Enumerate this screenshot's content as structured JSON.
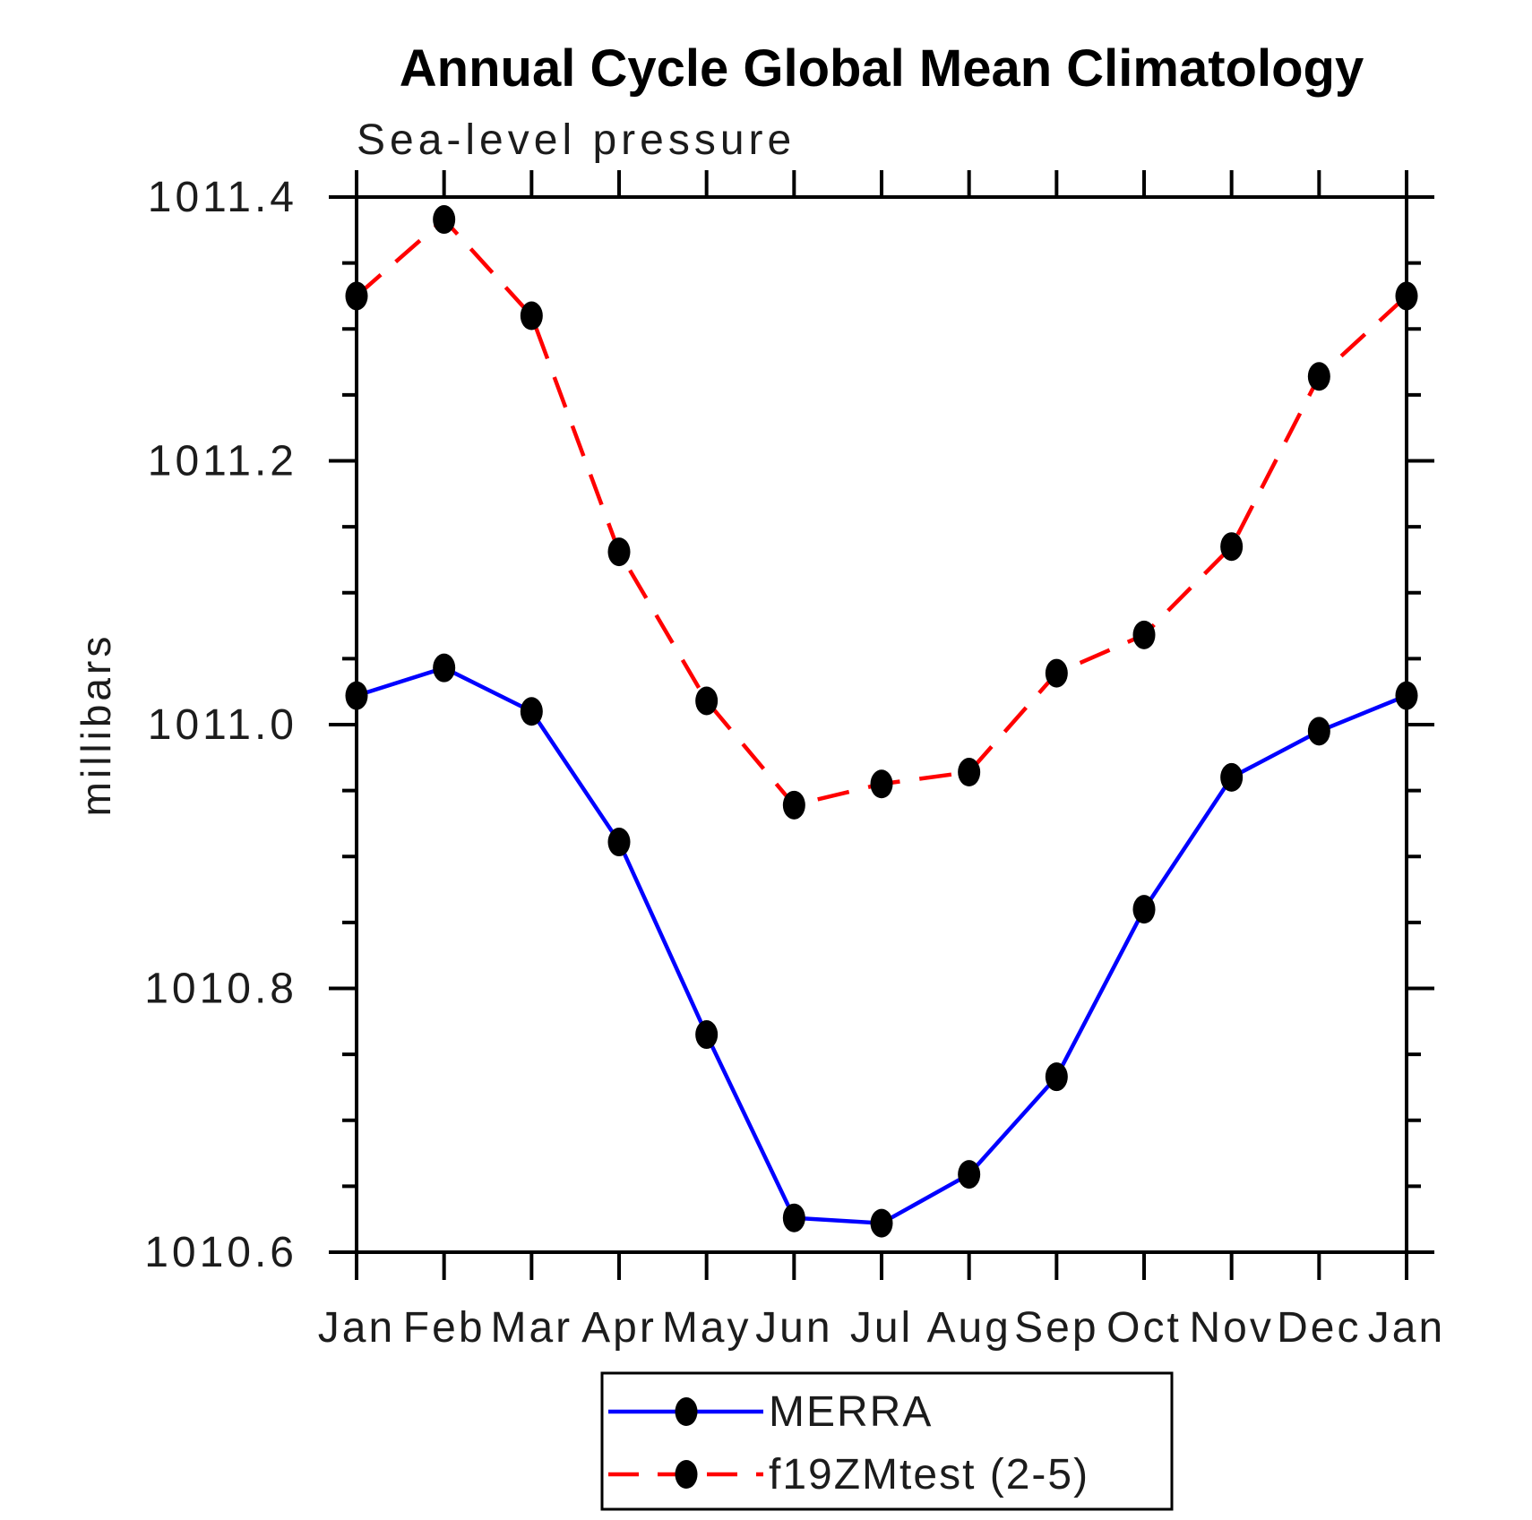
{
  "chart_data": {
    "type": "line",
    "title": "Annual Cycle Global Mean Climatology",
    "subtitle": "Sea-level pressure",
    "ylabel": "millibars",
    "xlabel": "",
    "categories": [
      "Jan",
      "Feb",
      "Mar",
      "Apr",
      "May",
      "Jun",
      "Jul",
      "Aug",
      "Sep",
      "Oct",
      "Nov",
      "Dec",
      "Jan"
    ],
    "ylim": [
      1010.6,
      1011.4
    ],
    "y_major_step": 0.2,
    "y_minor_step": 0.05,
    "y_tick_labels": [
      "1010.6",
      "1010.8",
      "1011.0",
      "1011.2",
      "1011.4"
    ],
    "grid": "off",
    "legend_position": "bottom-center",
    "axis_color": "#000000",
    "marker_color": "#000000",
    "series": [
      {
        "name": "MERRA",
        "color": "#0000FF",
        "line_style": "solid",
        "marker": "filled-circle",
        "values": [
          1011.022,
          1011.043,
          1011.01,
          1010.911,
          1010.765,
          1010.626,
          1010.622,
          1010.659,
          1010.733,
          1010.86,
          1010.96,
          1010.995,
          1011.022
        ]
      },
      {
        "name": "f19ZMtest (2-5)",
        "color": "#FF0000",
        "line_style": "dashed",
        "marker": "filled-circle",
        "values": [
          1011.325,
          1011.383,
          1011.31,
          1011.131,
          1011.018,
          1010.939,
          1010.955,
          1010.964,
          1011.039,
          1011.068,
          1011.135,
          1011.264,
          1011.325
        ]
      }
    ]
  }
}
